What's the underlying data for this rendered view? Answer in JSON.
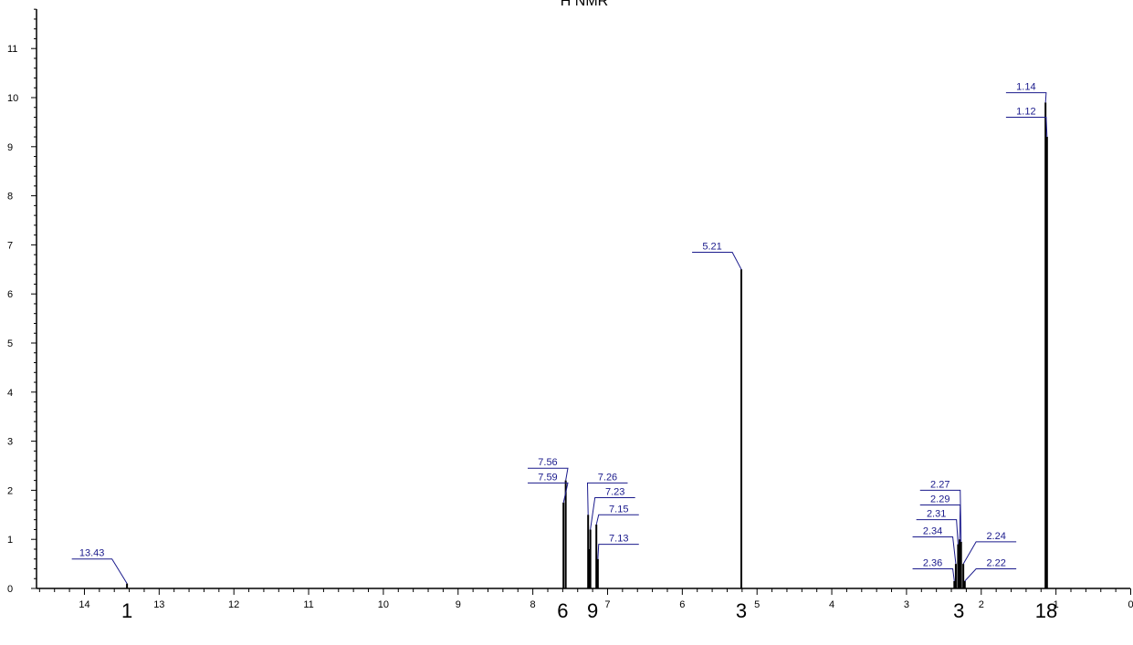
{
  "chart_data": {
    "type": "line",
    "title": "H NMR",
    "xlabel": "",
    "ylabel": "",
    "xlim": [
      15.0,
      0.0
    ],
    "ylim": [
      0,
      12
    ],
    "x_ticks": [
      14,
      13,
      12,
      11,
      10,
      9,
      8,
      7,
      6,
      5,
      4,
      3,
      2,
      1,
      0
    ],
    "x_tick_labels": [
      "14",
      "13",
      "12",
      "11",
      "10",
      "9",
      "8",
      "7",
      "6",
      "5",
      "4",
      "3",
      "2",
      "1",
      "0"
    ],
    "y_ticks": [
      0,
      1,
      2,
      3,
      4,
      5,
      6,
      7,
      8,
      9,
      10,
      11
    ],
    "y_tick_labels": [
      "0",
      "1",
      "2",
      "3",
      "4",
      "5",
      "6",
      "7",
      "8",
      "9",
      "10",
      "11"
    ],
    "peaks": [
      {
        "x": 13.43,
        "y": 0.1
      },
      {
        "x": 7.59,
        "y": 1.75
      },
      {
        "x": 7.56,
        "y": 2.2
      },
      {
        "x": 7.26,
        "y": 1.5
      },
      {
        "x": 7.25,
        "y": 0.8
      },
      {
        "x": 7.23,
        "y": 1.2
      },
      {
        "x": 7.15,
        "y": 1.3
      },
      {
        "x": 7.13,
        "y": 0.6
      },
      {
        "x": 5.21,
        "y": 6.5
      },
      {
        "x": 2.36,
        "y": 0.15
      },
      {
        "x": 2.34,
        "y": 0.5
      },
      {
        "x": 2.31,
        "y": 0.9
      },
      {
        "x": 2.29,
        "y": 1.0
      },
      {
        "x": 2.27,
        "y": 0.95
      },
      {
        "x": 2.24,
        "y": 0.5
      },
      {
        "x": 2.22,
        "y": 0.15
      },
      {
        "x": 1.14,
        "y": 9.9
      },
      {
        "x": 1.12,
        "y": 9.2
      }
    ],
    "peak_labels": [
      {
        "text": "13.43",
        "x": 13.43,
        "y": 0.1,
        "label_x": 13.9,
        "label_y": 0.6
      },
      {
        "text": "7.56",
        "x": 7.56,
        "y": 2.2,
        "label_x": 7.8,
        "label_y": 2.45
      },
      {
        "text": "7.59",
        "x": 7.59,
        "y": 1.75,
        "label_x": 7.8,
        "label_y": 2.15
      },
      {
        "text": "7.26",
        "x": 7.26,
        "y": 1.5,
        "label_x": 7.0,
        "label_y": 2.15
      },
      {
        "text": "7.23",
        "x": 7.23,
        "y": 1.2,
        "label_x": 6.9,
        "label_y": 1.85
      },
      {
        "text": "7.15",
        "x": 7.15,
        "y": 1.3,
        "label_x": 6.85,
        "label_y": 1.5
      },
      {
        "text": "7.13",
        "x": 7.13,
        "y": 0.6,
        "label_x": 6.85,
        "label_y": 0.9
      },
      {
        "text": "5.21",
        "x": 5.21,
        "y": 6.5,
        "label_x": 5.6,
        "label_y": 6.85
      },
      {
        "text": "2.27",
        "x": 2.27,
        "y": 0.95,
        "label_x": 2.55,
        "label_y": 2.0
      },
      {
        "text": "2.29",
        "x": 2.29,
        "y": 1.0,
        "label_x": 2.55,
        "label_y": 1.7
      },
      {
        "text": "2.31",
        "x": 2.31,
        "y": 0.9,
        "label_x": 2.6,
        "label_y": 1.4
      },
      {
        "text": "2.34",
        "x": 2.34,
        "y": 0.5,
        "label_x": 2.65,
        "label_y": 1.05
      },
      {
        "text": "2.24",
        "x": 2.24,
        "y": 0.5,
        "label_x": 1.8,
        "label_y": 0.95
      },
      {
        "text": "2.36",
        "x": 2.36,
        "y": 0.15,
        "label_x": 2.65,
        "label_y": 0.4
      },
      {
        "text": "2.22",
        "x": 2.22,
        "y": 0.15,
        "label_x": 1.8,
        "label_y": 0.4
      },
      {
        "text": "1.14",
        "x": 1.14,
        "y": 9.9,
        "label_x": 1.4,
        "label_y": 10.1
      },
      {
        "text": "1.12",
        "x": 1.12,
        "y": 9.2,
        "label_x": 1.4,
        "label_y": 9.6
      }
    ],
    "integrals": [
      {
        "text": "1",
        "x": 13.43
      },
      {
        "text": "6",
        "x": 7.6
      },
      {
        "text": "9",
        "x": 7.2
      },
      {
        "text": "3",
        "x": 5.21
      },
      {
        "text": "3",
        "x": 2.3
      },
      {
        "text": "18",
        "x": 1.13
      }
    ],
    "grid": false,
    "line_color": "#000000",
    "label_color": "#1a1a8c"
  }
}
